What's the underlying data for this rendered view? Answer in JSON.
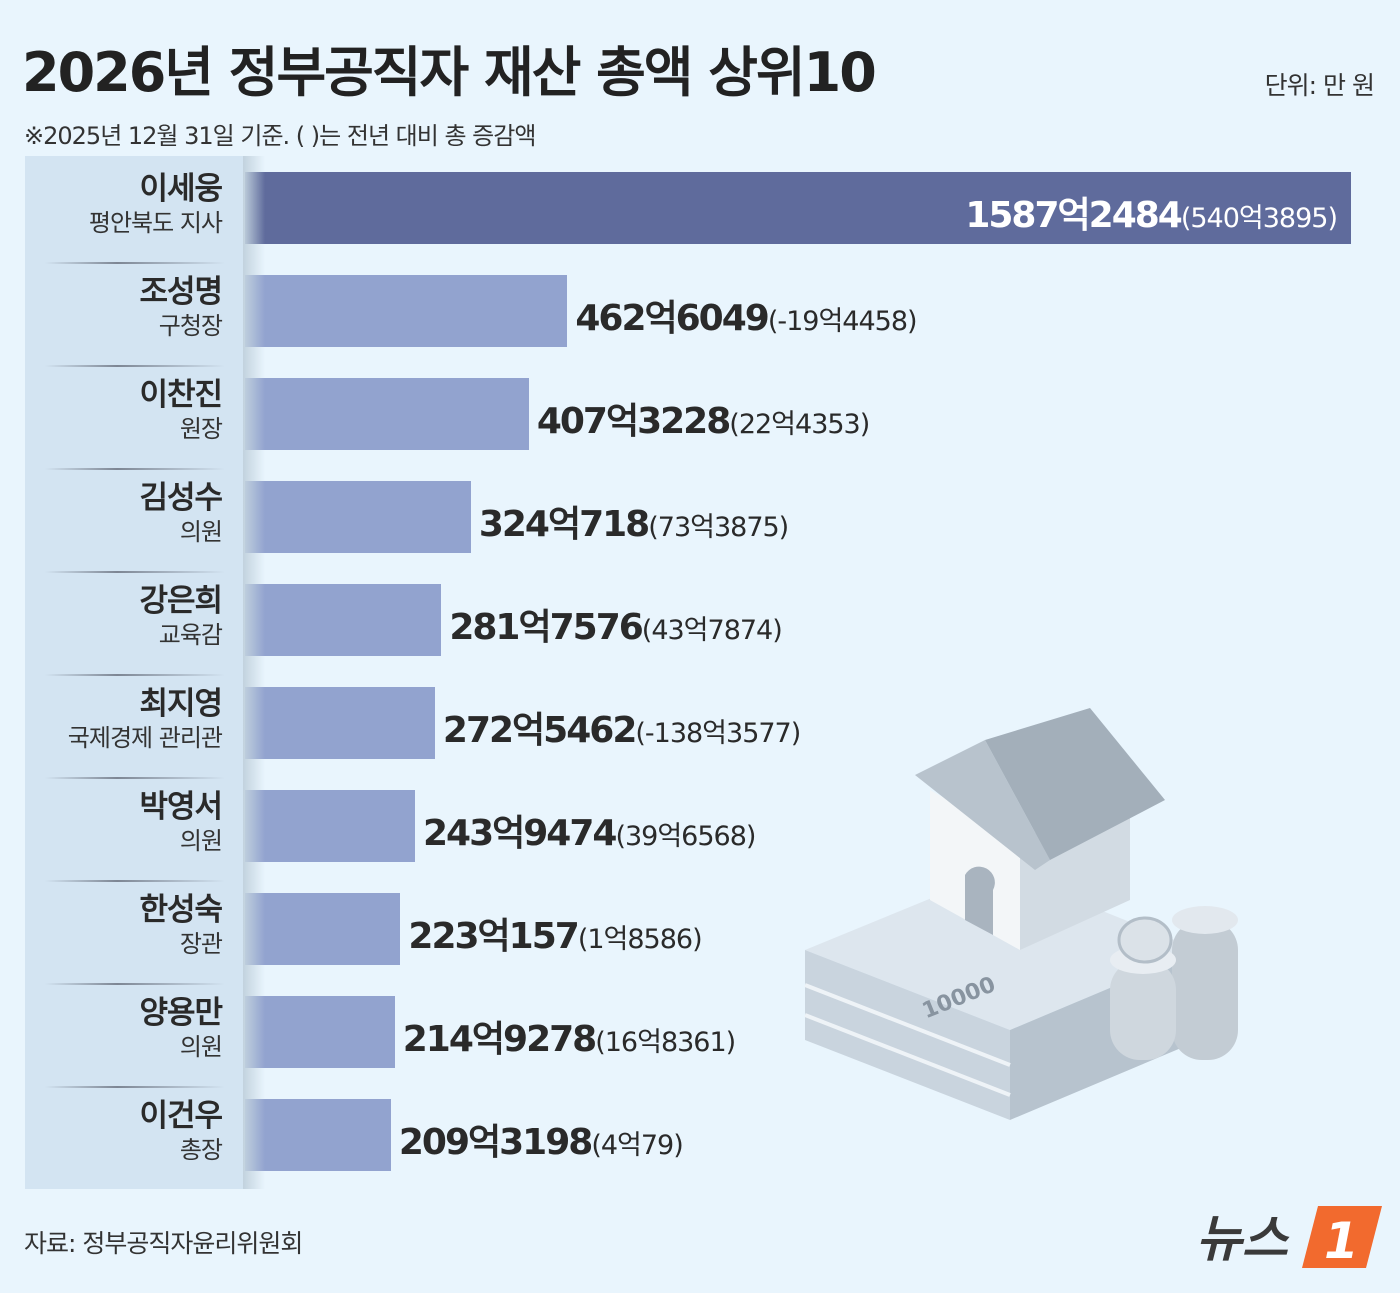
{
  "header": {
    "title": "2026년 정부공직자 재산 총액 상위10",
    "unit": "단위: 만 원",
    "subtitle": "※2025년 12월 31일 기준. ( )는 전년 대비 총 증감액"
  },
  "footer": {
    "source": "자료: 정부공직자윤리위원회",
    "logo_text": "뉴스1"
  },
  "colors": {
    "background": "#e9f5fd",
    "top_bar": "#5f6b9c",
    "bar": "#92a3cf",
    "label_pane": "#d3e4f2",
    "logo_accent": "#f26a2e"
  },
  "chart_data": {
    "type": "bar",
    "orientation": "horizontal",
    "title": "2026년 정부공직자 재산 총액 상위10",
    "unit": "만 원",
    "categories": [
      "이세웅",
      "조성명",
      "이찬진",
      "김성수",
      "강은희",
      "최지영",
      "박영서",
      "한성숙",
      "양용만",
      "이건우"
    ],
    "roles": [
      "평안북도 지사",
      "구청장",
      "원장",
      "의원",
      "교육감",
      "국제경제 관리관",
      "의원",
      "장관",
      "의원",
      "총장"
    ],
    "values": [
      15872484,
      4626049,
      4073228,
      3240718,
      2817576,
      2725462,
      2439474,
      2230157,
      2149278,
      2093198
    ],
    "changes": [
      5403895,
      -194458,
      224353,
      733875,
      437874,
      -1383577,
      396568,
      18586,
      168361,
      40079
    ],
    "value_labels": [
      "1587억2484",
      "462억6049",
      "407억3228",
      "324억718",
      "281억7576",
      "272억5462",
      "243억9474",
      "223억157",
      "214억9278",
      "209억3198"
    ],
    "change_labels": [
      "(540억3895)",
      "(-19억4458)",
      "(22억4353)",
      "(73억3875)",
      "(43억7874)",
      "(-138억3577)",
      "(39억6568)",
      "(1억8586)",
      "(16억8361)",
      "(4억79)"
    ],
    "grid": false,
    "legend": "none"
  }
}
